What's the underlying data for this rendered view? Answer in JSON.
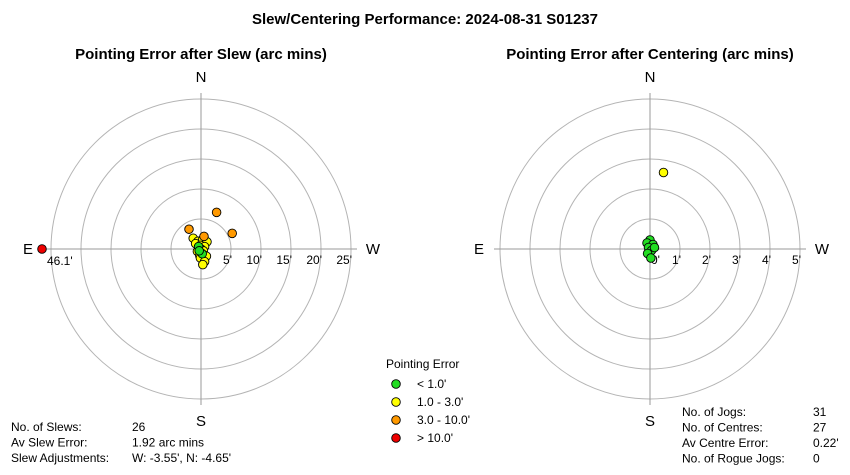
{
  "title": "Slew/Centering Performance: 2024-08-31 S01237",
  "chart_data": [
    {
      "type": "scatter",
      "projection": "polar",
      "title": "Pointing Error after Slew (arc mins)",
      "directions": {
        "N": "N",
        "S": "S",
        "E": "E",
        "W": "W"
      },
      "rings": [
        5,
        10,
        15,
        20,
        25
      ],
      "tick_labels": [
        "5'",
        "10'",
        "15'",
        "20'",
        "25'"
      ],
      "rmax": 25,
      "points": [
        {
          "x": -1.3,
          "y": 1.8,
          "cls": "y"
        },
        {
          "x": -0.5,
          "y": 1.3,
          "cls": "y"
        },
        {
          "x": 0.3,
          "y": 1.6,
          "cls": "y"
        },
        {
          "x": 1.0,
          "y": 1.2,
          "cls": "y"
        },
        {
          "x": -0.9,
          "y": 0.9,
          "cls": "y"
        },
        {
          "x": -0.1,
          "y": 0.6,
          "cls": "y"
        },
        {
          "x": 0.6,
          "y": 0.4,
          "cls": "y"
        },
        {
          "x": -0.3,
          "y": 0.1,
          "cls": "y"
        },
        {
          "x": 0.0,
          "y": 0.0,
          "cls": "y"
        },
        {
          "x": 0.4,
          "y": -0.3,
          "cls": "y"
        },
        {
          "x": -0.6,
          "y": -0.4,
          "cls": "y"
        },
        {
          "x": 0.1,
          "y": -0.7,
          "cls": "y"
        },
        {
          "x": -0.2,
          "y": -1.1,
          "cls": "y"
        },
        {
          "x": 0.5,
          "y": -1.0,
          "cls": "y"
        },
        {
          "x": 0.9,
          "y": -1.2,
          "cls": "y"
        },
        {
          "x": -0.1,
          "y": -1.5,
          "cls": "y"
        },
        {
          "x": 0.6,
          "y": -2.1,
          "cls": "y"
        },
        {
          "x": 0.3,
          "y": -2.6,
          "cls": "y"
        },
        {
          "x": -0.4,
          "y": 0.4,
          "cls": "g"
        },
        {
          "x": 0.2,
          "y": -0.8,
          "cls": "g"
        },
        {
          "x": -0.3,
          "y": -0.3,
          "cls": "g"
        },
        {
          "x": 2.6,
          "y": 6.1,
          "cls": "o"
        },
        {
          "x": -2.0,
          "y": 3.3,
          "cls": "o"
        },
        {
          "x": 5.2,
          "y": 2.6,
          "cls": "o"
        },
        {
          "x": 0.5,
          "y": 2.1,
          "cls": "o"
        }
      ],
      "outliers": [
        {
          "direction": "E",
          "value": 46.1,
          "label": "46.1'",
          "cls": "r"
        }
      ]
    },
    {
      "type": "scatter",
      "projection": "polar",
      "title": "Pointing Error after Centering (arc mins)",
      "directions": {
        "N": "N",
        "S": "S",
        "E": "E",
        "W": "W"
      },
      "rings": [
        1,
        2,
        3,
        4,
        5
      ],
      "tick_labels": [
        "0'",
        "1'",
        "2'",
        "3'",
        "4'",
        "5'"
      ],
      "rmax": 5,
      "points": [
        {
          "x": 0.45,
          "y": 2.55,
          "cls": "y"
        },
        {
          "x": 0.0,
          "y": 0.3,
          "cls": "g"
        },
        {
          "x": -0.1,
          "y": 0.2,
          "cls": "g"
        },
        {
          "x": 0.1,
          "y": 0.15,
          "cls": "g"
        },
        {
          "x": -0.05,
          "y": 0.05,
          "cls": "g"
        },
        {
          "x": 0.05,
          "y": -0.05,
          "cls": "g"
        },
        {
          "x": 0.15,
          "y": 0.05,
          "cls": "g"
        },
        {
          "x": -0.08,
          "y": -0.15,
          "cls": "g"
        },
        {
          "x": 0.03,
          "y": -0.3,
          "cls": "g"
        }
      ]
    }
  ],
  "legend": {
    "title": "Pointing Error",
    "items": [
      {
        "label": "< 1.0'",
        "color": "#22dd22"
      },
      {
        "label": "1.0 - 3.0'",
        "color": "#ffff00"
      },
      {
        "label": "3.0 - 10.0'",
        "color": "#ff9900"
      },
      {
        "label": "> 10.0'",
        "color": "#ee0000"
      }
    ]
  },
  "slew_stats": [
    {
      "label": "No. of Slews:",
      "value": "26"
    },
    {
      "label": "Av Slew Error:",
      "value": "1.92 arc mins"
    },
    {
      "label": "Slew Adjustments:",
      "value": "W: -3.55', N: -4.65'"
    }
  ],
  "centre_stats": [
    {
      "label": "No. of Jogs:",
      "value": "31"
    },
    {
      "label": "No. of Centres:",
      "value": "27"
    },
    {
      "label": "Av Centre Error:",
      "value": "0.22'"
    },
    {
      "label": "No. of Rogue Jogs:",
      "value": "0"
    }
  ],
  "colors": {
    "g": "#22dd22",
    "y": "#ffff00",
    "o": "#ff9900",
    "r": "#ee0000",
    "grid": "#b4b4b4",
    "axis": "#9a9a9a"
  }
}
